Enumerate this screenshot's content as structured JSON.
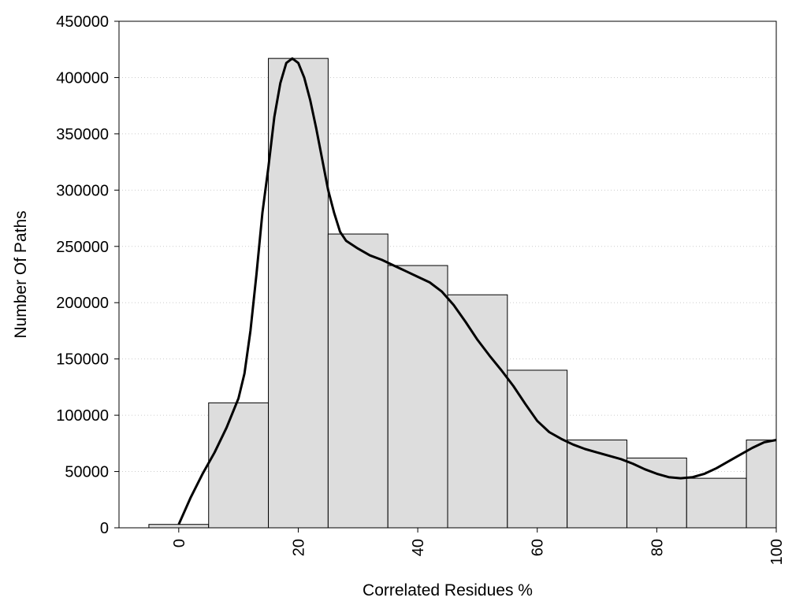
{
  "chart_data": {
    "type": "bar",
    "title": "",
    "xlabel": "Correlated Residues %",
    "ylabel": "Number Of Paths",
    "xlim": [
      -10,
      100
    ],
    "ylim": [
      0,
      450000
    ],
    "grid": true,
    "bin_width": 10,
    "bins": [
      {
        "center": 0,
        "value": 3000
      },
      {
        "center": 10,
        "value": 111000
      },
      {
        "center": 20,
        "value": 417000
      },
      {
        "center": 30,
        "value": 261000
      },
      {
        "center": 40,
        "value": 233000
      },
      {
        "center": 50,
        "value": 207000
      },
      {
        "center": 60,
        "value": 140000
      },
      {
        "center": 70,
        "value": 78000
      },
      {
        "center": 80,
        "value": 62000
      },
      {
        "center": 90,
        "value": 44000
      },
      {
        "center": 100,
        "value": 78000
      }
    ],
    "curve": [
      [
        0,
        3000
      ],
      [
        2,
        27000
      ],
      [
        4,
        48000
      ],
      [
        6,
        67000
      ],
      [
        8,
        89000
      ],
      [
        10,
        115000
      ],
      [
        11,
        137000
      ],
      [
        12,
        175000
      ],
      [
        13,
        225000
      ],
      [
        14,
        280000
      ],
      [
        15,
        320000
      ],
      [
        16,
        365000
      ],
      [
        17,
        395000
      ],
      [
        18,
        413000
      ],
      [
        19,
        417000
      ],
      [
        20,
        413000
      ],
      [
        21,
        400000
      ],
      [
        22,
        380000
      ],
      [
        23,
        355000
      ],
      [
        25,
        300000
      ],
      [
        26,
        280000
      ],
      [
        27,
        263000
      ],
      [
        28,
        255000
      ],
      [
        30,
        248000
      ],
      [
        32,
        242000
      ],
      [
        34,
        238000
      ],
      [
        36,
        233000
      ],
      [
        38,
        228000
      ],
      [
        40,
        223000
      ],
      [
        42,
        218000
      ],
      [
        44,
        210000
      ],
      [
        46,
        198000
      ],
      [
        48,
        183000
      ],
      [
        50,
        167000
      ],
      [
        52,
        153000
      ],
      [
        54,
        140000
      ],
      [
        56,
        126000
      ],
      [
        58,
        110000
      ],
      [
        60,
        95000
      ],
      [
        62,
        85000
      ],
      [
        64,
        79000
      ],
      [
        66,
        74000
      ],
      [
        68,
        70000
      ],
      [
        70,
        67000
      ],
      [
        72,
        64000
      ],
      [
        74,
        61000
      ],
      [
        76,
        57000
      ],
      [
        78,
        52000
      ],
      [
        80,
        48000
      ],
      [
        82,
        45000
      ],
      [
        84,
        44000
      ],
      [
        86,
        45000
      ],
      [
        88,
        48000
      ],
      [
        90,
        53000
      ],
      [
        92,
        59000
      ],
      [
        94,
        65000
      ],
      [
        96,
        71000
      ],
      [
        98,
        76000
      ],
      [
        100,
        78000
      ]
    ],
    "x_ticks": [
      "0",
      "20",
      "40",
      "60",
      "80",
      "100"
    ],
    "x_tick_values": [
      0,
      20,
      40,
      60,
      80,
      100
    ],
    "y_ticks": [
      "0",
      "50000",
      "100000",
      "150000",
      "200000",
      "250000",
      "300000",
      "350000",
      "400000",
      "450000"
    ],
    "y_tick_values": [
      0,
      50000,
      100000,
      150000,
      200000,
      250000,
      300000,
      350000,
      400000,
      450000
    ],
    "colors": {
      "bar_fill": "#dddddd",
      "bar_stroke": "#000000",
      "curve": "#000000",
      "grid": "#cccccc"
    }
  }
}
